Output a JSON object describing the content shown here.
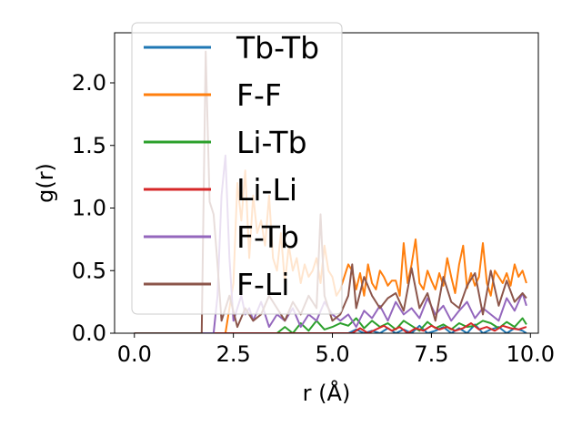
{
  "chart_data": {
    "type": "line",
    "title": "",
    "xlabel": "r (Å)",
    "ylabel": "g(r)",
    "xlim": [
      -0.5,
      10.2
    ],
    "ylim": [
      0,
      2.4
    ],
    "xticks": [
      0,
      2.5,
      5,
      7.5,
      10
    ],
    "xtick_labels": [
      "0.0",
      "2.5",
      "5.0",
      "7.5",
      "10.0"
    ],
    "yticks": [
      0,
      0.5,
      1,
      1.5,
      2
    ],
    "ytick_labels": [
      "0.0",
      "0.5",
      "1.0",
      "1.5",
      "2.0"
    ],
    "grid": false,
    "legend_position": "upper-left",
    "series": [
      {
        "name": "Tb-Tb",
        "color": "#1f77b4",
        "x": [
          0,
          1,
          2,
          3,
          4,
          5,
          5.4,
          5.6,
          5.8,
          6,
          6.2,
          6.4,
          6.6,
          6.8,
          7,
          7.2,
          7.4,
          7.6,
          7.8,
          8,
          8.2,
          8.4,
          8.6,
          8.8,
          9,
          9.2,
          9.4,
          9.6,
          9.8,
          9.9
        ],
        "y": [
          0,
          0,
          0,
          0,
          0,
          0,
          0,
          0.03,
          0,
          0.02,
          0,
          0.04,
          0,
          0.03,
          0,
          0.06,
          0,
          0.02,
          0.05,
          0,
          0.04,
          0,
          0.07,
          0,
          0.03,
          0.05,
          0,
          0.04,
          0.02,
          0
        ]
      },
      {
        "name": "F-F",
        "color": "#ff7f0e",
        "x": [
          0,
          1,
          2,
          2.3,
          2.5,
          2.6,
          2.7,
          2.8,
          2.9,
          3,
          3.1,
          3.2,
          3.3,
          3.4,
          3.5,
          3.6,
          3.7,
          3.8,
          3.9,
          4,
          4.1,
          4.2,
          4.3,
          4.4,
          4.5,
          4.6,
          4.7,
          4.8,
          4.9,
          5,
          5.1,
          5.2,
          5.3,
          5.4,
          5.5,
          5.6,
          5.7,
          5.8,
          5.9,
          6,
          6.1,
          6.2,
          6.3,
          6.4,
          6.5,
          6.6,
          6.7,
          6.8,
          6.9,
          7,
          7.1,
          7.2,
          7.3,
          7.4,
          7.5,
          7.6,
          7.7,
          7.8,
          7.9,
          8,
          8.1,
          8.2,
          8.3,
          8.4,
          8.5,
          8.6,
          8.7,
          8.8,
          8.9,
          9,
          9.1,
          9.2,
          9.3,
          9.4,
          9.5,
          9.6,
          9.7,
          9.8,
          9.9
        ],
        "y": [
          0,
          0,
          0,
          0,
          0.4,
          1.2,
          0.9,
          1.3,
          0.6,
          1.1,
          0.8,
          0.9,
          0.7,
          1.1,
          0.6,
          0.5,
          0.8,
          0.4,
          0.7,
          0.5,
          0.6,
          0.4,
          0.55,
          0.45,
          0.5,
          0.6,
          0.4,
          0.7,
          0.5,
          0.45,
          0.3,
          0.35,
          0.45,
          0.55,
          0.5,
          0.35,
          0.48,
          0.3,
          0.55,
          0.4,
          0.35,
          0.5,
          0.45,
          0.38,
          0.42,
          0.42,
          0.3,
          0.72,
          0.4,
          0.55,
          0.75,
          0.4,
          0.35,
          0.5,
          0.42,
          0.35,
          0.48,
          0.38,
          0.6,
          0.45,
          0.32,
          0.55,
          0.7,
          0.36,
          0.48,
          0.38,
          0.45,
          0.72,
          0.4,
          0.3,
          0.5,
          0.45,
          0.4,
          0.48,
          0.38,
          0.55,
          0.45,
          0.5,
          0.4
        ]
      },
      {
        "name": "Li-Tb",
        "color": "#2ca02c",
        "x": [
          0,
          1,
          2,
          3,
          3.6,
          3.8,
          4,
          4.2,
          4.4,
          4.6,
          4.8,
          5,
          5.2,
          5.4,
          5.6,
          5.8,
          6,
          6.2,
          6.4,
          6.6,
          6.8,
          7,
          7.2,
          7.4,
          7.6,
          7.8,
          8,
          8.2,
          8.4,
          8.6,
          8.8,
          9,
          9.2,
          9.4,
          9.6,
          9.8,
          9.9
        ],
        "y": [
          0,
          0,
          0,
          0,
          0,
          0.05,
          0,
          0.08,
          0.02,
          0.1,
          0.03,
          0.05,
          0.08,
          0.06,
          0.12,
          0.04,
          0.1,
          0.05,
          0.08,
          0.03,
          0.1,
          0.06,
          0.02,
          0.09,
          0.04,
          0.07,
          0.03,
          0.08,
          0.05,
          0.06,
          0.1,
          0.08,
          0.04,
          0.09,
          0.05,
          0.12,
          0.07
        ]
      },
      {
        "name": "Li-Li",
        "color": "#d62728",
        "x": [
          0,
          1,
          2,
          3,
          4,
          5,
          5.5,
          5.7,
          5.9,
          6.1,
          6.3,
          6.5,
          6.7,
          6.9,
          7.1,
          7.3,
          7.5,
          7.7,
          7.9,
          8.1,
          8.3,
          8.5,
          8.7,
          8.9,
          9.1,
          9.3,
          9.5,
          9.7,
          9.9
        ],
        "y": [
          0,
          0,
          0,
          0,
          0,
          0,
          0,
          0.04,
          0,
          0.03,
          0.06,
          0.02,
          0.05,
          0,
          0.04,
          0.02,
          0.06,
          0.03,
          0.05,
          0.02,
          0.04,
          0.08,
          0.03,
          0.05,
          0.02,
          0.06,
          0.04,
          0.03,
          0.05
        ]
      },
      {
        "name": "F-Tb",
        "color": "#9467bd",
        "x": [
          0,
          1,
          2,
          2.1,
          2.2,
          2.3,
          2.4,
          2.5,
          2.6,
          2.7,
          2.8,
          2.9,
          3,
          3.2,
          3.4,
          3.6,
          3.8,
          4,
          4.2,
          4.4,
          4.6,
          4.8,
          5,
          5.2,
          5.4,
          5.6,
          5.8,
          6,
          6.2,
          6.4,
          6.6,
          6.8,
          7,
          7.2,
          7.4,
          7.6,
          7.8,
          8,
          8.2,
          8.4,
          8.6,
          8.8,
          9,
          9.2,
          9.4,
          9.6,
          9.8,
          9.9
        ],
        "y": [
          0,
          0,
          0,
          0.3,
          1.1,
          1.42,
          0.6,
          0.1,
          0.2,
          0.3,
          0.15,
          0.2,
          0.1,
          0.25,
          0.05,
          0.15,
          0.1,
          0.2,
          0.05,
          0.15,
          0.1,
          0.25,
          0.15,
          0.1,
          0.15,
          0.05,
          0.18,
          0.12,
          0.22,
          0.1,
          0.25,
          0.15,
          0.2,
          0.12,
          0.28,
          0.15,
          0.22,
          0.1,
          0.18,
          0.25,
          0.12,
          0.2,
          0.15,
          0.1,
          0.28,
          0.18,
          0.32,
          0.22
        ]
      },
      {
        "name": "F-Li",
        "color": "#8c564b",
        "x": [
          0,
          1,
          1.7,
          1.8,
          1.9,
          2,
          2.1,
          2.2,
          2.4,
          2.6,
          2.8,
          3,
          3.2,
          3.4,
          3.6,
          3.8,
          4,
          4.2,
          4.4,
          4.6,
          4.7,
          4.8,
          5,
          5.2,
          5.4,
          5.5,
          5.6,
          5.8,
          6,
          6.2,
          6.4,
          6.6,
          6.8,
          7,
          7.2,
          7.4,
          7.6,
          7.8,
          8,
          8.2,
          8.4,
          8.6,
          8.8,
          9,
          9.2,
          9.4,
          9.6,
          9.8,
          9.9
        ],
        "y": [
          0,
          0,
          0,
          2.25,
          1.05,
          0.95,
          0.55,
          0.1,
          0.3,
          0.05,
          0.2,
          0.1,
          0.15,
          0.3,
          0.2,
          0.1,
          0.25,
          0.15,
          0.3,
          0.2,
          0.95,
          0.3,
          0.1,
          0.15,
          0.3,
          0.55,
          0.2,
          0.45,
          0.3,
          0.2,
          0.28,
          0.32,
          0.18,
          0.52,
          0.2,
          0.32,
          0.1,
          0.45,
          0.25,
          0.2,
          0.38,
          0.48,
          0.15,
          0.5,
          0.22,
          0.42,
          0.25,
          0.32,
          0.28
        ]
      }
    ]
  }
}
